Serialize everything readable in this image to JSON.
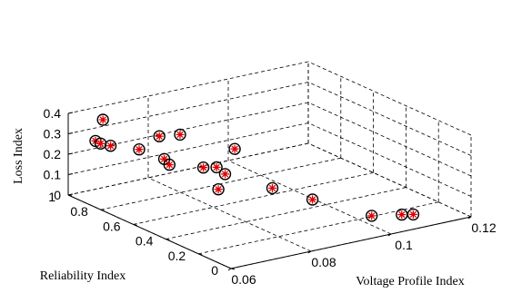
{
  "chart_data": {
    "type": "scatter",
    "projection": "3d",
    "title": "",
    "xlabel": "Voltage Profile Index",
    "ylabel": "Reliability Index",
    "zlabel": "Loss Index",
    "xlim": [
      0.06,
      0.12
    ],
    "ylim": [
      0,
      1
    ],
    "zlim": [
      0,
      0.4
    ],
    "xticks": [
      "0.06",
      "0.08",
      "0.1",
      "0.12"
    ],
    "yticks": [
      "0",
      "0.2",
      "0.4",
      "0.6",
      "0.8",
      "1"
    ],
    "zticks": [
      "0",
      "0.1",
      "0.2",
      "0.3",
      "0.4"
    ],
    "grid": true,
    "marker": "circle-asterisk",
    "marker_color": "#e00000",
    "points": [
      {
        "x": 0.0634,
        "y": 0.916,
        "z": 0.2806
      },
      {
        "x": 0.0652,
        "y": 0.929,
        "z": 0.2555
      },
      {
        "x": 0.066,
        "y": 0.887,
        "z": 0.2569
      },
      {
        "x": 0.0679,
        "y": 0.981,
        "z": 0.3423
      },
      {
        "x": 0.0708,
        "y": 0.83,
        "z": 0.2393
      },
      {
        "x": 0.0735,
        "y": 0.742,
        "z": 0.2122
      },
      {
        "x": 0.0735,
        "y": 0.71,
        "z": 0.1958
      },
      {
        "x": 0.0755,
        "y": 0.821,
        "z": 0.2869
      },
      {
        "x": 0.079,
        "y": 0.78,
        "z": 0.2948
      },
      {
        "x": 0.0779,
        "y": 0.61,
        "z": 0.1996
      },
      {
        "x": 0.0775,
        "y": 0.508,
        "z": 0.1313
      },
      {
        "x": 0.0812,
        "y": 0.61,
        "z": 0.187
      },
      {
        "x": 0.0816,
        "y": 0.567,
        "z": 0.1672
      },
      {
        "x": 0.0862,
        "y": 0.621,
        "z": 0.2516
      },
      {
        "x": 0.0875,
        "y": 0.422,
        "z": 0.1256
      },
      {
        "x": 0.0935,
        "y": 0.323,
        "z": 0.08
      },
      {
        "x": 0.1013,
        "y": 0.151,
        "z": 0.0293
      },
      {
        "x": 0.107,
        "y": 0.106,
        "z": 0.0273
      },
      {
        "x": 0.1088,
        "y": 0.08,
        "z": 0.0299
      }
    ]
  }
}
